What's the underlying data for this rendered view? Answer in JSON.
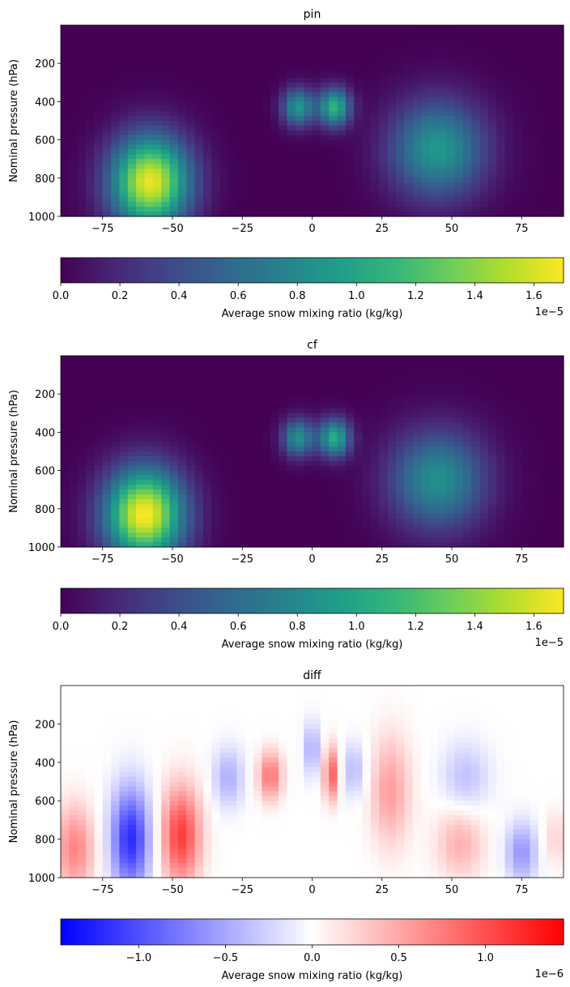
{
  "chart_data": [
    {
      "type": "heatmap",
      "title": "pin",
      "ylabel": "Nominal pressure (hPa)",
      "xlim": [
        -90,
        90
      ],
      "ylim": [
        1000,
        0
      ],
      "xticks": [
        -75,
        -50,
        -25,
        0,
        25,
        50,
        75
      ],
      "xtick_labels": [
        "−75",
        "−50",
        "−25",
        "0",
        "25",
        "50",
        "75"
      ],
      "yticks": [
        200,
        400,
        600,
        800,
        1000
      ],
      "ytick_labels": [
        "200",
        "400",
        "600",
        "800",
        "1000"
      ],
      "colormap": "viridis",
      "colorbar": {
        "label": "Average snow mixing ratio (kg/kg)",
        "range": [
          0,
          1.7e-05
        ],
        "ticks": [
          0,
          2e-06,
          4e-06,
          6e-06,
          8e-06,
          1e-05,
          1.2e-05,
          1.4e-05,
          1.6e-05
        ],
        "tick_labels": [
          "0.0",
          "0.2",
          "0.4",
          "0.6",
          "0.8",
          "1.0",
          "1.2",
          "1.4",
          "1.6"
        ],
        "offset_label": "1e−5",
        "placement": "bottom"
      },
      "features": [
        {
          "lat": -58,
          "p": 820,
          "value": 1.65e-05,
          "sx": 10,
          "sp": 170
        },
        {
          "lat": 45,
          "p": 650,
          "value": 9e-06,
          "sx": 12,
          "sp": 180
        },
        {
          "lat": -5,
          "p": 430,
          "value": 9e-06,
          "sx": 4,
          "sp": 70
        },
        {
          "lat": 8,
          "p": 430,
          "value": 1.1e-05,
          "sx": 4,
          "sp": 70
        }
      ]
    },
    {
      "type": "heatmap",
      "title": "cf",
      "ylabel": "Nominal pressure (hPa)",
      "xlim": [
        -90,
        90
      ],
      "ylim": [
        1000,
        0
      ],
      "xticks": [
        -75,
        -50,
        -25,
        0,
        25,
        50,
        75
      ],
      "xtick_labels": [
        "−75",
        "−50",
        "−25",
        "0",
        "25",
        "50",
        "75"
      ],
      "yticks": [
        200,
        400,
        600,
        800,
        1000
      ],
      "ytick_labels": [
        "200",
        "400",
        "600",
        "800",
        "1000"
      ],
      "colormap": "viridis",
      "colorbar": {
        "label": "Average snow mixing ratio (kg/kg)",
        "range": [
          0,
          1.7e-05
        ],
        "ticks": [
          0,
          2e-06,
          4e-06,
          6e-06,
          8e-06,
          1e-05,
          1.2e-05,
          1.4e-05,
          1.6e-05
        ],
        "tick_labels": [
          "0.0",
          "0.2",
          "0.4",
          "0.6",
          "0.8",
          "1.0",
          "1.2",
          "1.4",
          "1.6"
        ],
        "offset_label": "1e−5",
        "placement": "bottom"
      },
      "features": [
        {
          "lat": -60,
          "p": 830,
          "value": 1.7e-05,
          "sx": 10,
          "sp": 170
        },
        {
          "lat": 45,
          "p": 650,
          "value": 8.5e-06,
          "sx": 12,
          "sp": 180
        },
        {
          "lat": -5,
          "p": 430,
          "value": 8.5e-06,
          "sx": 4,
          "sp": 70
        },
        {
          "lat": 8,
          "p": 430,
          "value": 1.05e-05,
          "sx": 4,
          "sp": 70
        }
      ]
    },
    {
      "type": "heatmap",
      "title": "diff",
      "ylabel": "Nominal pressure (hPa)",
      "xlim": [
        -90,
        90
      ],
      "ylim": [
        1000,
        0
      ],
      "xticks": [
        -75,
        -50,
        -25,
        0,
        25,
        50,
        75
      ],
      "xtick_labels": [
        "−75",
        "−50",
        "−25",
        "0",
        "25",
        "50",
        "75"
      ],
      "yticks": [
        200,
        400,
        600,
        800,
        1000
      ],
      "ytick_labels": [
        "200",
        "400",
        "600",
        "800",
        "1000"
      ],
      "colormap": "bwr",
      "colorbar": {
        "label": "Average snow mixing ratio (kg/kg)",
        "range": [
          -1.45e-06,
          1.45e-06
        ],
        "ticks": [
          -1e-06,
          -5e-07,
          0,
          5e-07,
          1e-06
        ],
        "tick_labels": [
          "−1.0",
          "−0.5",
          "0.0",
          "0.5",
          "1.0"
        ],
        "offset_label": "1e−6",
        "placement": "bottom"
      },
      "features": [
        {
          "lat": -65,
          "p": 800,
          "value": -1.2e-06,
          "sx": 5,
          "sp": 190
        },
        {
          "lat": -47,
          "p": 780,
          "value": 1.1e-06,
          "sx": 5,
          "sp": 180
        },
        {
          "lat": -85,
          "p": 850,
          "value": 7e-07,
          "sx": 5,
          "sp": 160
        },
        {
          "lat": -15,
          "p": 470,
          "value": 8e-07,
          "sx": 3,
          "sp": 90
        },
        {
          "lat": 7,
          "p": 460,
          "value": 9e-07,
          "sx": 2,
          "sp": 100
        },
        {
          "lat": 0,
          "p": 330,
          "value": -5e-07,
          "sx": 2,
          "sp": 100
        },
        {
          "lat": -30,
          "p": 480,
          "value": -4.5e-07,
          "sx": 4,
          "sp": 110
        },
        {
          "lat": 15,
          "p": 440,
          "value": -4e-07,
          "sx": 3,
          "sp": 100
        },
        {
          "lat": 28,
          "p": 550,
          "value": 5.5e-07,
          "sx": 5,
          "sp": 200
        },
        {
          "lat": 53,
          "p": 820,
          "value": 4.5e-07,
          "sx": 6,
          "sp": 130
        },
        {
          "lat": 75,
          "p": 870,
          "value": -6e-07,
          "sx": 4,
          "sp": 110
        },
        {
          "lat": 55,
          "p": 480,
          "value": -3.5e-07,
          "sx": 6,
          "sp": 130
        },
        {
          "lat": 87,
          "p": 800,
          "value": 2.5e-07,
          "sx": 3,
          "sp": 100
        }
      ]
    }
  ]
}
